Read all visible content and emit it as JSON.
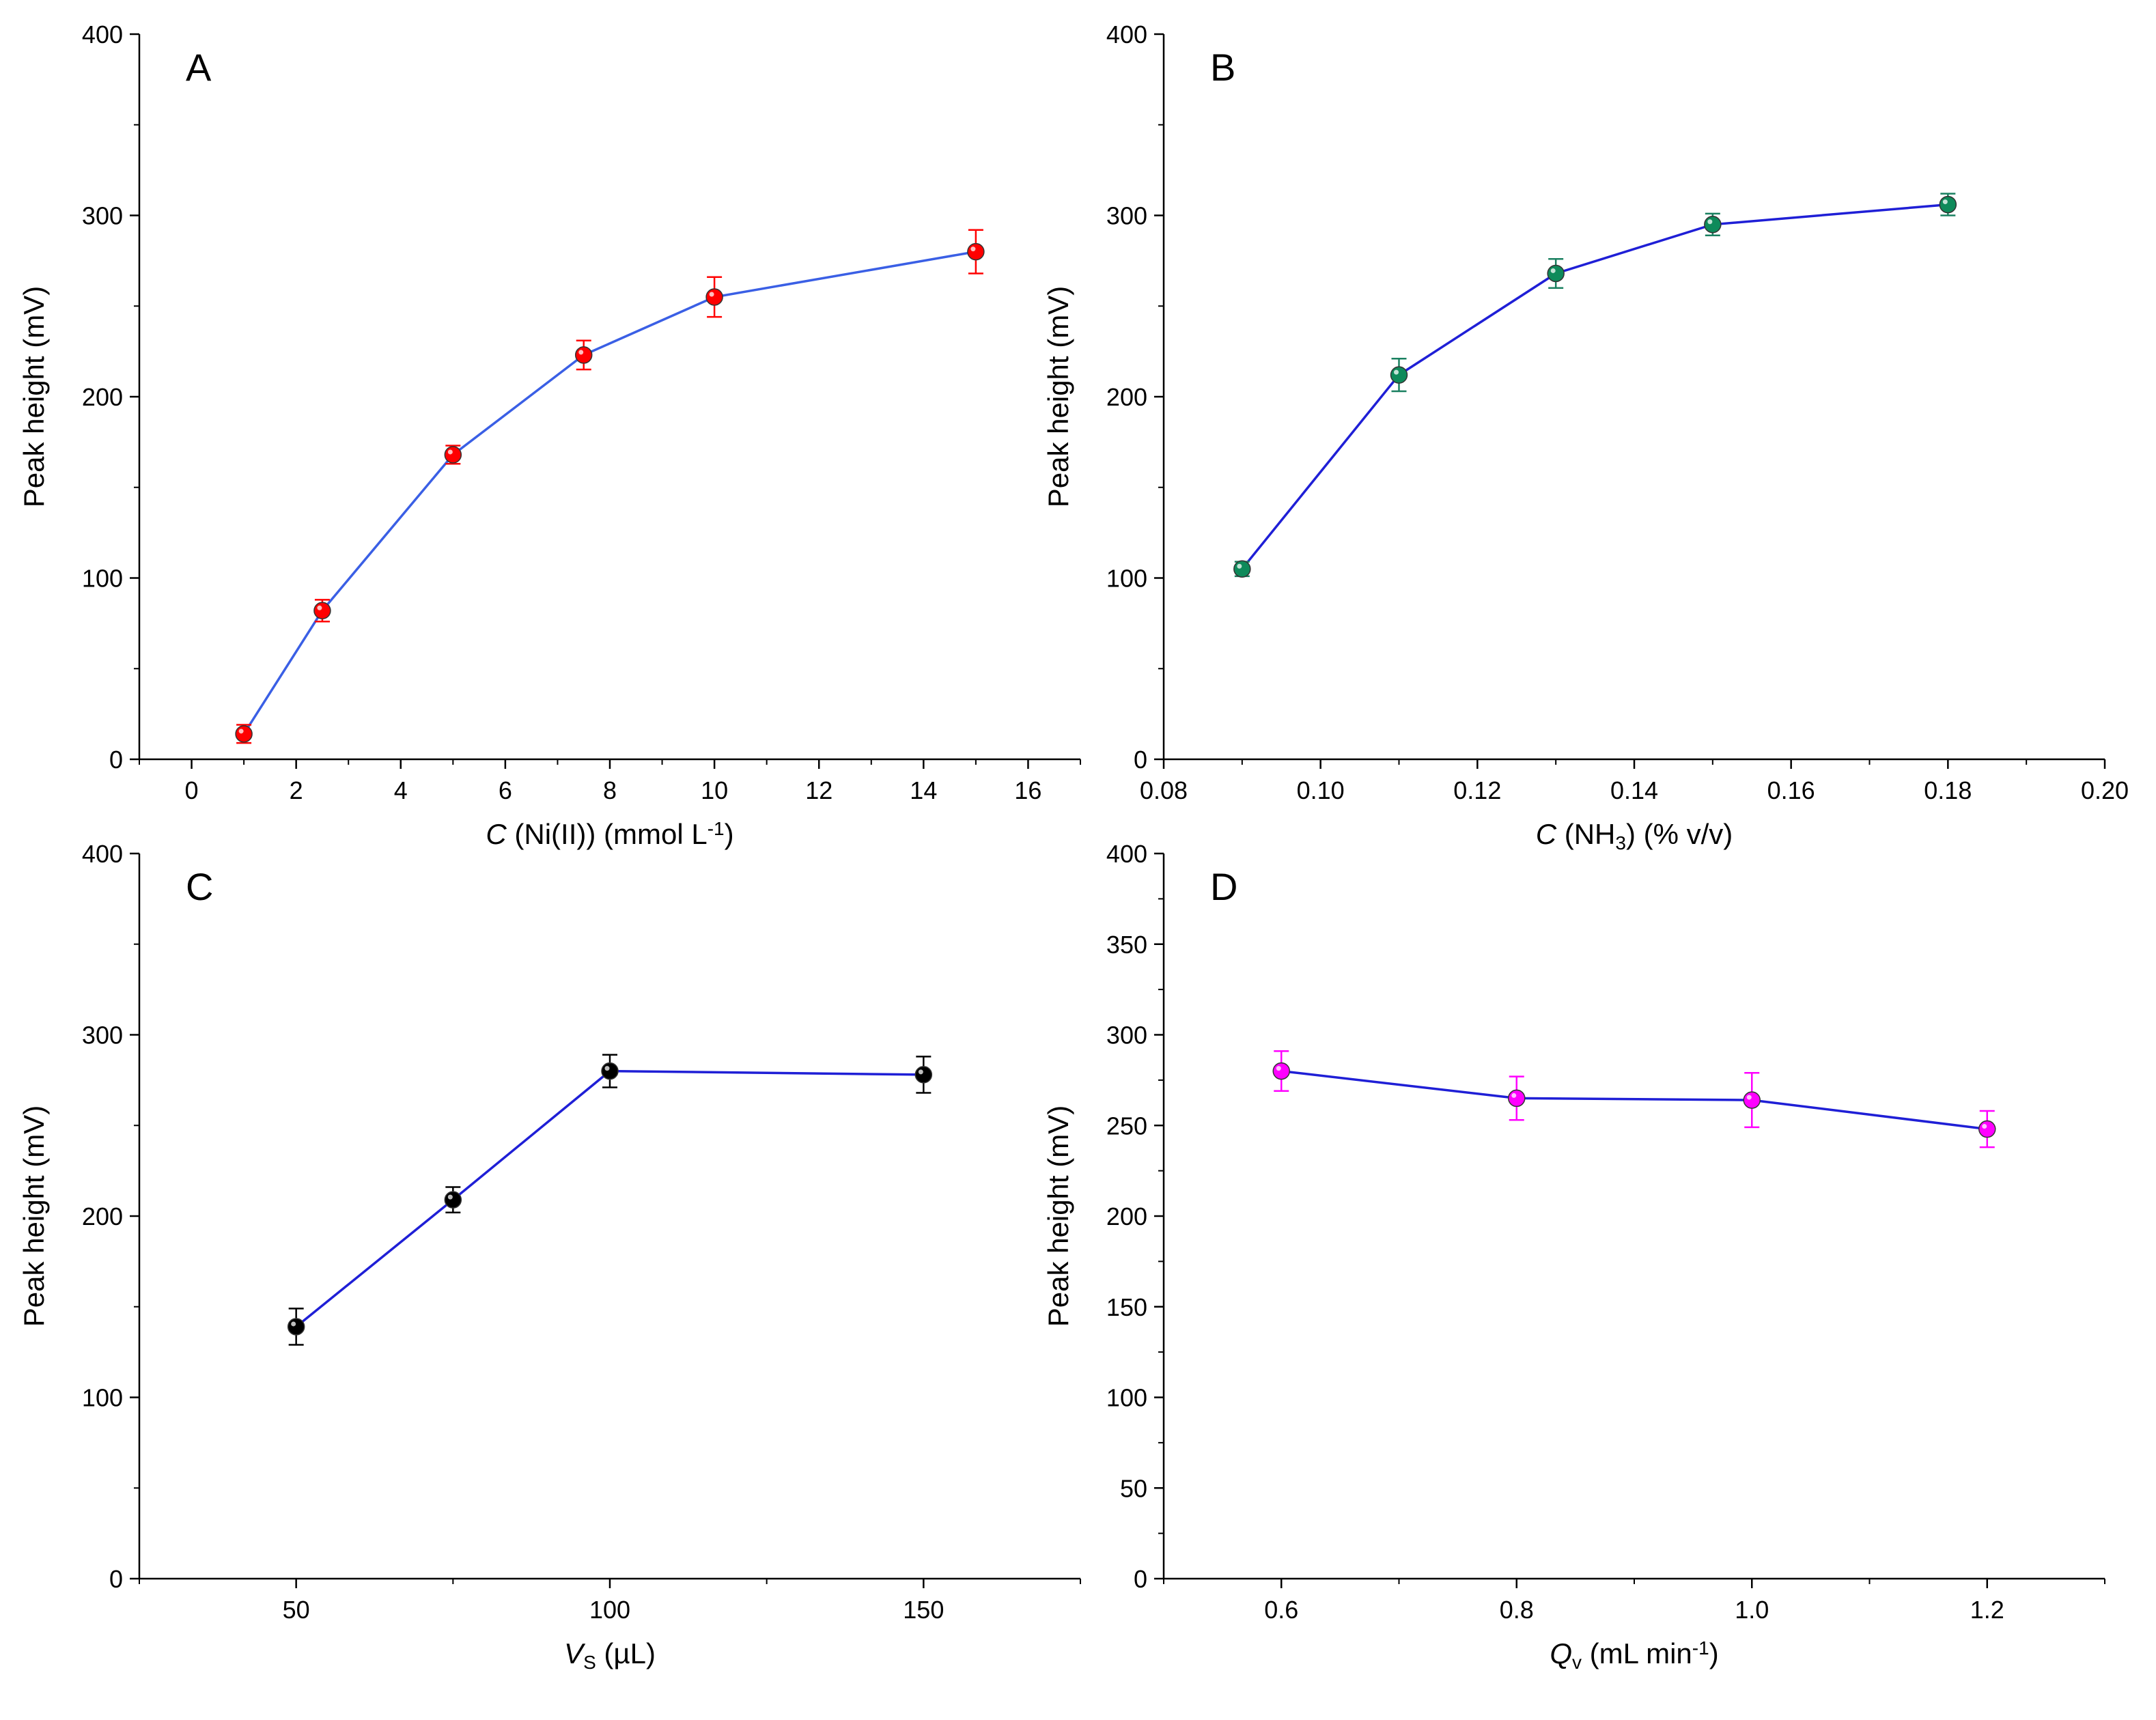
{
  "chart_data": [
    {
      "panel": "A",
      "type": "line",
      "ylabel": "Peak height (mV)",
      "xlabel": {
        "italic": "C",
        "text": " (Ni(II)) (mmol L",
        "sup": "-1",
        "tail": ")"
      },
      "xlim": [
        -1,
        17
      ],
      "ylim": [
        0,
        400
      ],
      "xticks": [
        0,
        2,
        4,
        6,
        8,
        10,
        12,
        14,
        16
      ],
      "xtick_labels": [
        "0",
        "2",
        "4",
        "6",
        "8",
        "10",
        "12",
        "14",
        "16"
      ],
      "yticks": [
        0,
        100,
        200,
        300,
        400
      ],
      "ytick_labels": [
        "0",
        "100",
        "200",
        "300",
        "400"
      ],
      "grid": false,
      "marker_color": "#ff0000",
      "errorbar_color": "#ff0000",
      "line_color": "#3a5fe5",
      "series": [
        {
          "x": [
            1,
            2.5,
            5,
            7.5,
            10,
            15
          ],
          "y": [
            14,
            82,
            168,
            223,
            255,
            280
          ],
          "err": [
            5,
            6,
            5,
            8,
            11,
            12
          ]
        }
      ]
    },
    {
      "panel": "B",
      "type": "line",
      "ylabel": "Peak height (mV)",
      "xlabel": {
        "italic": "C",
        "text": " (NH",
        "sub": "3",
        "tail": ") (% v/v)"
      },
      "xlim": [
        0.08,
        0.2
      ],
      "ylim": [
        0,
        400
      ],
      "xticks": [
        0.08,
        0.1,
        0.12,
        0.14,
        0.16,
        0.18,
        0.2
      ],
      "xtick_labels": [
        "0.08",
        "0.10",
        "0.12",
        "0.14",
        "0.16",
        "0.18",
        "0.20"
      ],
      "yticks": [
        0,
        100,
        200,
        300,
        400
      ],
      "ytick_labels": [
        "0",
        "100",
        "200",
        "300",
        "400"
      ],
      "grid": false,
      "marker_color": "#0e8a5a",
      "errorbar_color": "#1a8060",
      "line_color": "#1f1fd6",
      "series": [
        {
          "x": [
            0.09,
            0.11,
            0.13,
            0.15,
            0.18
          ],
          "y": [
            105,
            212,
            268,
            295,
            306
          ],
          "err": [
            4,
            9,
            8,
            6,
            6
          ]
        }
      ]
    },
    {
      "panel": "C",
      "type": "line",
      "ylabel": "Peak height (mV)",
      "xlabel": {
        "italic": "V",
        "sub": "S",
        "text": " (µL)"
      },
      "xlim": [
        25,
        175
      ],
      "ylim": [
        0,
        400
      ],
      "xticks": [
        50,
        100,
        150
      ],
      "xtick_labels": [
        "50",
        "100",
        "150"
      ],
      "yticks": [
        0,
        100,
        200,
        300,
        400
      ],
      "ytick_labels": [
        "0",
        "100",
        "200",
        "300",
        "400"
      ],
      "grid": false,
      "marker_color": "#000000",
      "errorbar_color": "#000000",
      "line_color": "#1f1fd6",
      "series": [
        {
          "x": [
            50,
            75,
            100,
            150
          ],
          "y": [
            139,
            209,
            280,
            278
          ],
          "err": [
            10,
            7,
            9,
            10
          ]
        }
      ]
    },
    {
      "panel": "D",
      "type": "line",
      "ylabel": "Peak height (mV)",
      "xlabel": {
        "italic": "Q",
        "sub": "v",
        "text": " (mL min",
        "sup": "-1",
        "tail": ")"
      },
      "xlim": [
        0.5,
        1.3
      ],
      "ylim": [
        0,
        400
      ],
      "xticks": [
        0.6,
        0.8,
        1.0,
        1.2
      ],
      "xtick_labels": [
        "0.6",
        "0.8",
        "1.0",
        "1.2"
      ],
      "yticks": [
        0,
        50,
        100,
        150,
        200,
        250,
        300,
        350,
        400
      ],
      "ytick_labels": [
        "0",
        "50",
        "100",
        "150",
        "200",
        "250",
        "300",
        "350",
        "400"
      ],
      "grid": false,
      "marker_color": "#ff00ff",
      "errorbar_color": "#ff00ff",
      "line_color": "#1f1fd6",
      "series": [
        {
          "x": [
            0.6,
            0.8,
            1.0,
            1.2
          ],
          "y": [
            280,
            265,
            264,
            248
          ],
          "err": [
            11,
            12,
            15,
            10
          ]
        }
      ]
    }
  ]
}
